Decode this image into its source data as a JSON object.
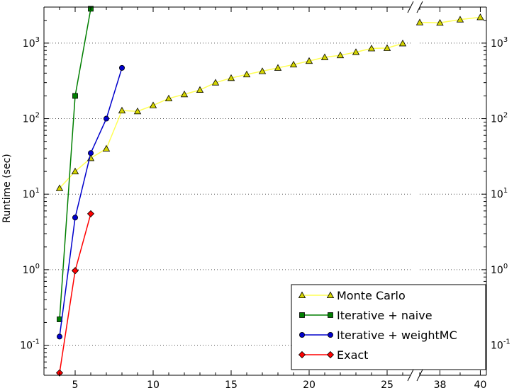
{
  "chart_data": {
    "type": "line",
    "title": "",
    "xlabel": "",
    "ylabel": "Runtime (sec)",
    "yscale": "log",
    "ylim": [
      0.04,
      3000
    ],
    "y_ticks": [
      {
        "value": 0.1,
        "base": "10",
        "exp": "-1"
      },
      {
        "value": 1,
        "base": "10",
        "exp": "0"
      },
      {
        "value": 10,
        "base": "10",
        "exp": "1"
      },
      {
        "value": 100,
        "base": "10",
        "exp": "2"
      },
      {
        "value": 1000,
        "base": "10",
        "exp": "3"
      }
    ],
    "grid": "y-dotted",
    "legend_position": "lower-right",
    "broken_x_axis": true,
    "x_segments": [
      {
        "xlim": [
          3,
          26.5
        ],
        "ticks": [
          "5",
          "10",
          "15",
          "20",
          "25"
        ],
        "tick_values": [
          5,
          10,
          15,
          20,
          25
        ]
      },
      {
        "xlim": [
          37,
          40.3
        ],
        "ticks": [
          "38",
          "40"
        ],
        "tick_values": [
          38,
          40
        ]
      }
    ],
    "series": [
      {
        "name": "Monte Carlo",
        "color": "#ffff55",
        "marker": "triangle",
        "marker_fill": "#d4d400",
        "x": [
          4,
          5,
          6,
          7,
          8,
          9,
          10,
          11,
          12,
          13,
          14,
          15,
          16,
          17,
          18,
          19,
          20,
          21,
          22,
          23,
          24,
          25,
          26,
          37,
          38,
          39,
          40
        ],
        "y": [
          12,
          20,
          30,
          40,
          128,
          125,
          150,
          185,
          210,
          240,
          300,
          345,
          385,
          425,
          470,
          520,
          580,
          650,
          690,
          760,
          850,
          860,
          990,
          1880,
          1860,
          2050,
          2200
        ]
      },
      {
        "name": "Iterative + naive",
        "color": "#007f00",
        "marker": "square",
        "marker_fill": "#007f00",
        "x": [
          4,
          5,
          6
        ],
        "y": [
          0.22,
          200,
          2850
        ]
      },
      {
        "name": "Iterative + weightMC",
        "color": "#0000cc",
        "marker": "circle",
        "marker_fill": "#0000cc",
        "x": [
          4,
          5,
          6,
          7,
          8
        ],
        "y": [
          0.13,
          4.9,
          35,
          100,
          470
        ]
      },
      {
        "name": "Exact",
        "color": "#ff0000",
        "marker": "diamond",
        "marker_fill": "#ff0000",
        "x": [
          4,
          5,
          6
        ],
        "y": [
          0.043,
          0.97,
          5.5
        ]
      }
    ]
  }
}
